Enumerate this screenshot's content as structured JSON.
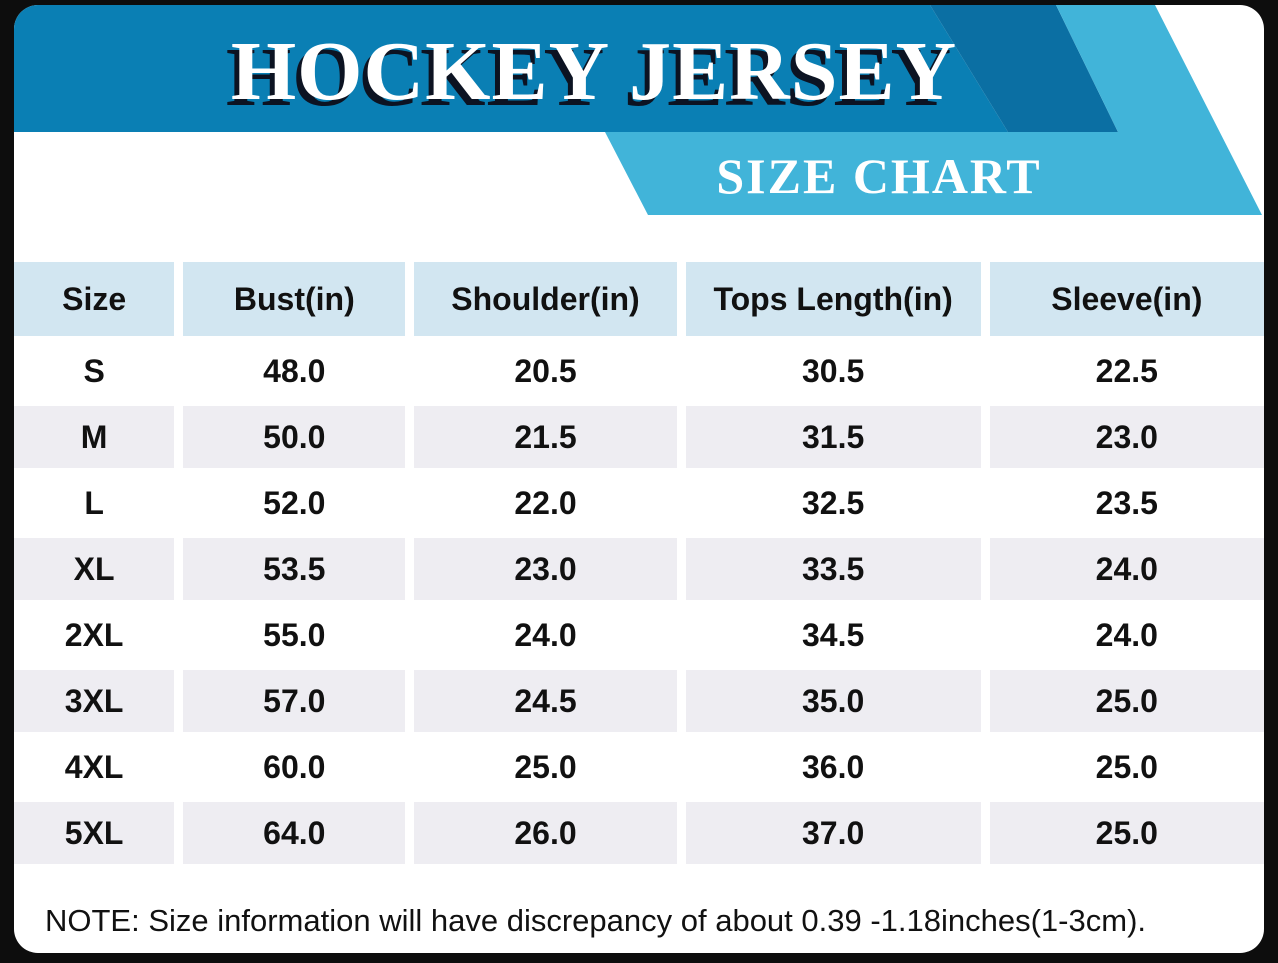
{
  "banner": {
    "title": "HOCKEY JERSEY",
    "subtitle": "SIZE CHART"
  },
  "colors": {
    "banner_blue": "#0a7fb4",
    "banner_shadow_blue": "#0b6fa3",
    "ribbon_blue": "#41b4d9",
    "header_bg": "#d2e6f1",
    "row_alt_bg": "#eeedf2",
    "frame_black": "#0d0d0d",
    "text_black": "#111111",
    "title_white": "#ffffff"
  },
  "table": {
    "columns": [
      "Size",
      "Bust(in)",
      "Shoulder(in)",
      "Tops Length(in)",
      "Sleeve(in)"
    ],
    "rows": [
      [
        "S",
        "48.0",
        "20.5",
        "30.5",
        "22.5"
      ],
      [
        "M",
        "50.0",
        "21.5",
        "31.5",
        "23.0"
      ],
      [
        "L",
        "52.0",
        "22.0",
        "32.5",
        "23.5"
      ],
      [
        "XL",
        "53.5",
        "23.0",
        "33.5",
        "24.0"
      ],
      [
        "2XL",
        "55.0",
        "24.0",
        "34.5",
        "24.0"
      ],
      [
        "3XL",
        "57.0",
        "24.5",
        "35.0",
        "25.0"
      ],
      [
        "4XL",
        "60.0",
        "25.0",
        "36.0",
        "25.0"
      ],
      [
        "5XL",
        "64.0",
        "26.0",
        "37.0",
        "25.0"
      ]
    ]
  },
  "note": "NOTE: Size information will have discrepancy of about 0.39 -1.18inches(1-3cm).",
  "chart_data": {
    "type": "table",
    "title": "HOCKEY JERSEY",
    "subtitle": "SIZE CHART",
    "columns": [
      "Size",
      "Bust(in)",
      "Shoulder(in)",
      "Tops Length(in)",
      "Sleeve(in)"
    ],
    "rows": [
      {
        "size": "S",
        "bust_in": 48.0,
        "shoulder_in": 20.5,
        "tops_length_in": 30.5,
        "sleeve_in": 22.5
      },
      {
        "size": "M",
        "bust_in": 50.0,
        "shoulder_in": 21.5,
        "tops_length_in": 31.5,
        "sleeve_in": 23.0
      },
      {
        "size": "L",
        "bust_in": 52.0,
        "shoulder_in": 22.0,
        "tops_length_in": 32.5,
        "sleeve_in": 23.5
      },
      {
        "size": "XL",
        "bust_in": 53.5,
        "shoulder_in": 23.0,
        "tops_length_in": 33.5,
        "sleeve_in": 24.0
      },
      {
        "size": "2XL",
        "bust_in": 55.0,
        "shoulder_in": 24.0,
        "tops_length_in": 34.5,
        "sleeve_in": 24.0
      },
      {
        "size": "3XL",
        "bust_in": 57.0,
        "shoulder_in": 24.5,
        "tops_length_in": 35.0,
        "sleeve_in": 25.0
      },
      {
        "size": "4XL",
        "bust_in": 60.0,
        "shoulder_in": 25.0,
        "tops_length_in": 36.0,
        "sleeve_in": 25.0
      },
      {
        "size": "5XL",
        "bust_in": 64.0,
        "shoulder_in": 26.0,
        "tops_length_in": 37.0,
        "sleeve_in": 25.0
      }
    ],
    "note": "NOTE: Size information will have discrepancy of about 0.39 -1.18inches(1-3cm)."
  }
}
